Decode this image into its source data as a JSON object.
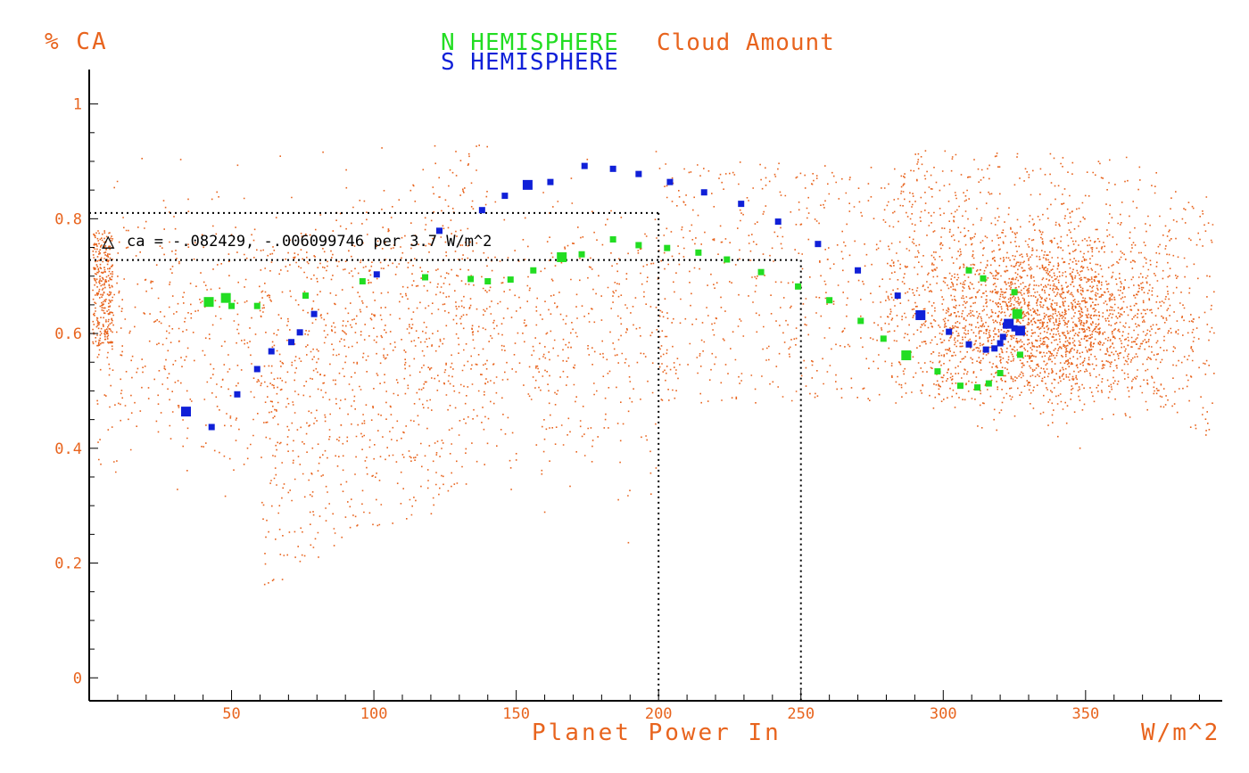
{
  "chart_data": {
    "type": "scatter",
    "title": {
      "n_hemisphere": "N HEMISPHERE",
      "cloud_amount": "Cloud Amount",
      "s_hemisphere": "S HEMISPHERE"
    },
    "ylabel": "% CA",
    "xlabel": "Planet Power In",
    "xunit": "W/m^2",
    "xlim": [
      0,
      398
    ],
    "ylim": [
      -0.04,
      1.06
    ],
    "xticks": [
      {
        "value": 50,
        "label": "50"
      },
      {
        "value": 100,
        "label": "100"
      },
      {
        "value": 150,
        "label": "150"
      },
      {
        "value": 200,
        "label": "200"
      },
      {
        "value": 250,
        "label": "250"
      },
      {
        "value": 300,
        "label": "300"
      },
      {
        "value": 350,
        "label": "350"
      }
    ],
    "yticks": [
      {
        "value": 1,
        "label": "1"
      },
      {
        "value": 0.8,
        "label": "0.8"
      },
      {
        "value": 0.6,
        "label": "0.6"
      },
      {
        "value": 0.4,
        "label": "0.4"
      },
      {
        "value": 0.2,
        "label": "0.2"
      },
      {
        "value": 0,
        "label": "0"
      }
    ],
    "grid": false,
    "annotation": {
      "symbol": "△",
      "text": "ca = -.082429, -.006099746 per 3.7 W/m^2"
    },
    "reference_lines": [
      {
        "x": 200,
        "y": 0.81
      },
      {
        "x": 250,
        "y": 0.728
      }
    ],
    "colors": {
      "background": "#ffffff",
      "axes": "#000000",
      "orange": "#e8641e",
      "green": "#22dd22",
      "blue": "#1020d8",
      "ref_lines": "#000000"
    },
    "series": [
      {
        "name": "N HEMISPHERE",
        "color": "#22dd22",
        "x": [
          42,
          48,
          50,
          59,
          76,
          96,
          118,
          134,
          140,
          148,
          156,
          166,
          173,
          184,
          193,
          203,
          214,
          224,
          236,
          249,
          260,
          271,
          279,
          287,
          298,
          306,
          309,
          312,
          314,
          316,
          320,
          325,
          326,
          327
        ],
        "y": [
          0.655,
          0.662,
          0.648,
          0.648,
          0.666,
          0.691,
          0.698,
          0.695,
          0.691,
          0.694,
          0.71,
          0.733,
          0.738,
          0.764,
          0.754,
          0.749,
          0.741,
          0.729,
          0.707,
          0.682,
          0.658,
          0.622,
          0.591,
          0.562,
          0.534,
          0.509,
          0.71,
          0.506,
          0.696,
          0.513,
          0.531,
          0.672,
          0.634,
          0.563
        ],
        "size": [
          2,
          2,
          1,
          1,
          1,
          1,
          1,
          1,
          1,
          1,
          1,
          2,
          1,
          1,
          1,
          1,
          1,
          1,
          1,
          1,
          1,
          1,
          1,
          2,
          1,
          1,
          1,
          1,
          1,
          1,
          1,
          1,
          2,
          1
        ]
      },
      {
        "name": "S HEMISPHERE",
        "color": "#1020d8",
        "x": [
          34,
          43,
          52,
          59,
          64,
          71,
          74,
          79,
          101,
          123,
          138,
          146,
          154,
          162,
          174,
          184,
          193,
          204,
          216,
          229,
          242,
          256,
          270,
          284,
          292,
          302,
          309,
          315,
          318,
          320,
          321,
          322,
          323,
          325,
          327
        ],
        "y": [
          0.464,
          0.437,
          0.494,
          0.538,
          0.569,
          0.585,
          0.602,
          0.634,
          0.703,
          0.779,
          0.815,
          0.84,
          0.859,
          0.864,
          0.892,
          0.887,
          0.878,
          0.864,
          0.846,
          0.826,
          0.795,
          0.756,
          0.71,
          0.666,
          0.632,
          0.603,
          0.581,
          0.572,
          0.574,
          0.583,
          0.594,
          0.614,
          0.617,
          0.609,
          0.605
        ],
        "size": [
          2,
          1,
          1,
          1,
          1,
          1,
          1,
          1,
          1,
          1,
          1,
          1,
          2,
          1,
          1,
          1,
          1,
          1,
          1,
          1,
          1,
          1,
          1,
          1,
          2,
          1,
          1,
          1,
          1,
          1,
          1,
          1,
          2,
          1,
          2
        ]
      }
    ],
    "background_scatter": {
      "name": "Cloud Amount",
      "color": "#e8641e",
      "point_count": 14000,
      "description_regions": [
        {
          "x_center": 125,
          "x_spread": 95,
          "y_center": 0.72,
          "y_spread": 0.15
        },
        {
          "x_center": 338,
          "x_spread": 45,
          "y_center": 0.63,
          "y_spread": 0.1
        }
      ]
    }
  }
}
